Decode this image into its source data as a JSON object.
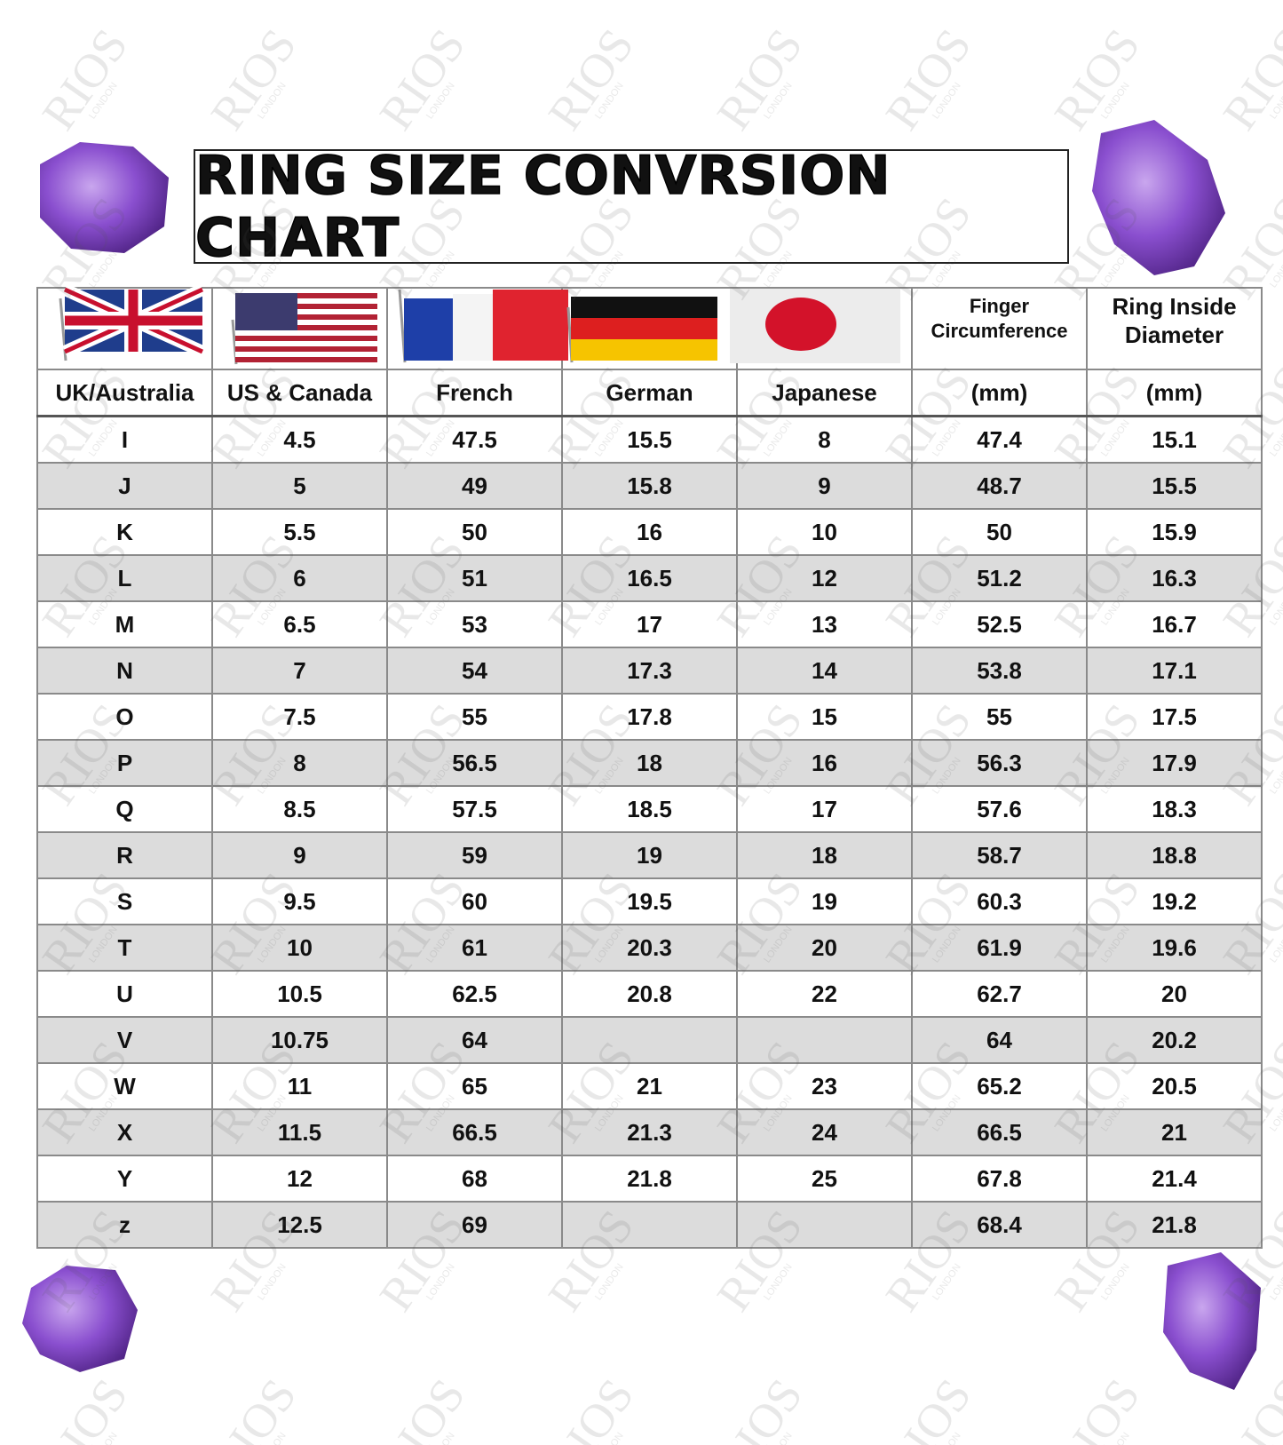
{
  "header": {
    "title": "RING SIZE CONVRSION CHART"
  },
  "watermark": {
    "brand": "RIOS",
    "sub": "LONDON"
  },
  "table": {
    "head": {
      "finger_circumference": "Finger Circumference",
      "ring_inside_diameter": "Ring Inside Diameter"
    },
    "columns": [
      "UK/Australia",
      "US & Canada",
      "French",
      "German",
      "Japanese",
      "(mm)",
      "(mm)"
    ],
    "rows": [
      [
        "I",
        4.5,
        47.5,
        15.5,
        8,
        47.4,
        15.1
      ],
      [
        "J",
        5,
        49,
        15.8,
        9,
        48.7,
        15.5
      ],
      [
        "K",
        5.5,
        50,
        16,
        10,
        50,
        15.9
      ],
      [
        "L",
        6,
        51,
        16.5,
        12,
        51.2,
        16.3
      ],
      [
        "M",
        6.5,
        53,
        17,
        13,
        52.5,
        16.7
      ],
      [
        "N",
        7,
        54,
        17.3,
        14,
        53.8,
        17.1
      ],
      [
        "O",
        7.5,
        55,
        17.8,
        15,
        55,
        17.5
      ],
      [
        "P",
        8,
        56.5,
        18,
        16,
        56.3,
        17.9
      ],
      [
        "Q",
        8.5,
        57.5,
        18.5,
        17,
        57.6,
        18.3
      ],
      [
        "R",
        9,
        59,
        19,
        18,
        58.7,
        18.8
      ],
      [
        "S",
        9.5,
        60,
        19.5,
        19,
        60.3,
        19.2
      ],
      [
        "T",
        10,
        61,
        20.3,
        20,
        61.9,
        19.6
      ],
      [
        "U",
        10.5,
        62.5,
        20.8,
        22,
        62.7,
        20
      ],
      [
        "V",
        10.75,
        64,
        null,
        null,
        64,
        20.2
      ],
      [
        "W",
        11,
        65,
        21,
        23,
        65.2,
        20.5
      ],
      [
        "X",
        11.5,
        66.5,
        21.3,
        24,
        66.5,
        21
      ],
      [
        "Y",
        12,
        68,
        21.8,
        25,
        67.8,
        21.4
      ],
      [
        "z",
        12.5,
        69,
        null,
        null,
        68.4,
        21.8
      ]
    ]
  }
}
